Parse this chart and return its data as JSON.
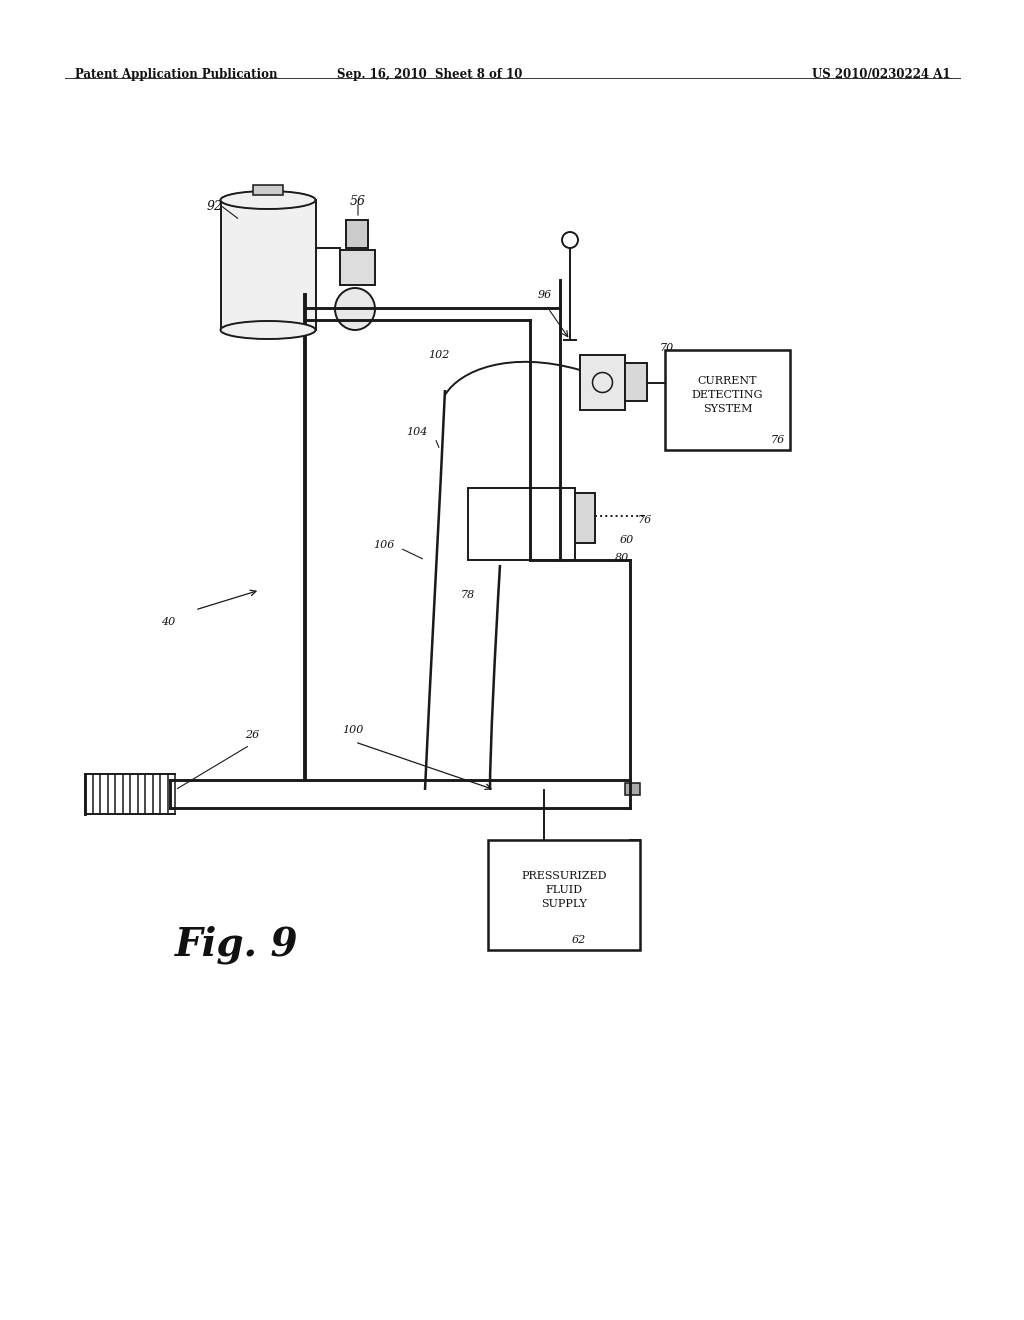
{
  "bg_color": "#ffffff",
  "header_left": "Patent Application Publication",
  "header_center": "Sep. 16, 2010  Sheet 8 of 10",
  "header_right": "US 2010/0230224 A1",
  "fig_label": "Fig. 9",
  "line_color": "#1a1a1a",
  "lw": 1.4
}
